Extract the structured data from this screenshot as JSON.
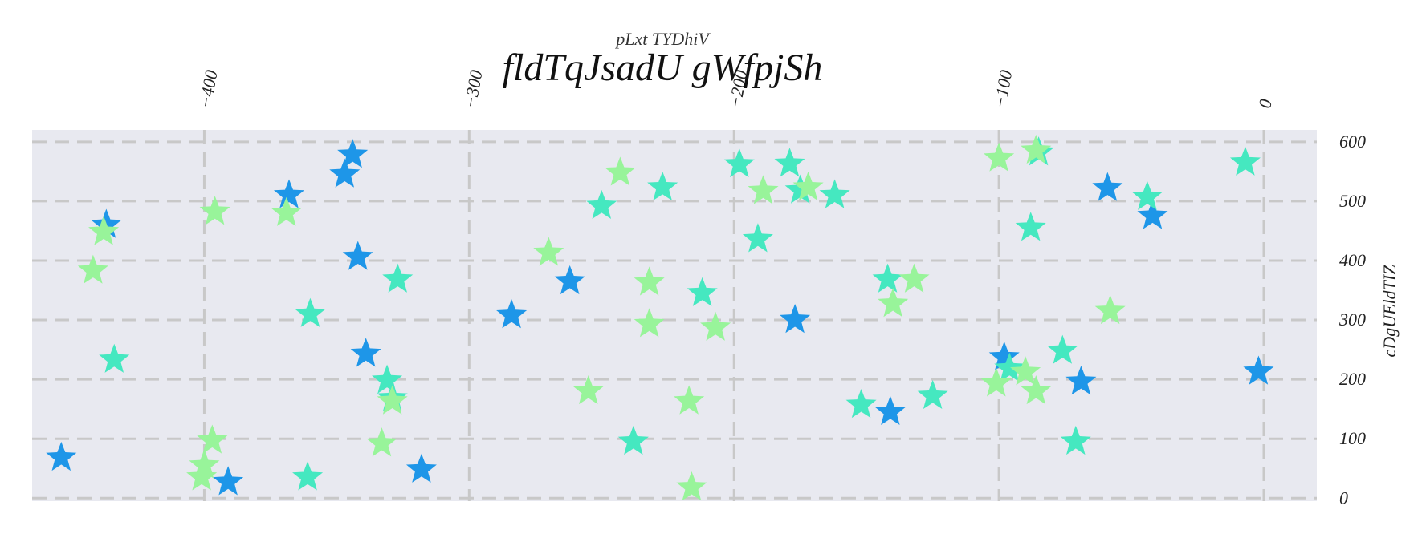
{
  "chart_data": {
    "type": "scatter",
    "title": "fldTqJsadU gWfpjSh",
    "subtitle": "pLxt TYDhiV",
    "xlabel": "pLxt TYDhiV",
    "ylabel": "cDgUEldTIZ",
    "xlim": [
      -465,
      20
    ],
    "ylim": [
      -5,
      620
    ],
    "x_ticks": [
      -400,
      -300,
      -200,
      -100,
      0
    ],
    "x_tick_labels": [
      "−400",
      "−300",
      "−200",
      "−100",
      "0"
    ],
    "y_ticks": [
      0,
      100,
      200,
      300,
      400,
      500,
      600
    ],
    "y_tick_labels": [
      "0",
      "100",
      "200",
      "300",
      "400",
      "500",
      "600"
    ],
    "x_axis_position": "top",
    "y_axis_position": "right",
    "grid": true,
    "marker": "star",
    "colors": {
      "blue": "#1e96e8",
      "teal": "#45e8c0",
      "green": "#98f49a",
      "background": "#e8e9f0",
      "grid": "#c8c8c8"
    },
    "series": [
      {
        "color": "#1e96e8",
        "points": [
          [
            -344,
            578
          ],
          [
            -347,
            545
          ],
          [
            -368,
            510
          ],
          [
            -437,
            460
          ],
          [
            -342,
            406
          ],
          [
            -262,
            365
          ],
          [
            -284,
            308
          ],
          [
            -339,
            243
          ],
          [
            -318,
            48
          ],
          [
            -391,
            27
          ],
          [
            -454,
            68
          ],
          [
            -177,
            300
          ],
          [
            -42,
            475
          ],
          [
            -59,
            522
          ],
          [
            -98,
            237
          ],
          [
            -69,
            196
          ],
          [
            -2,
            213
          ],
          [
            -141,
            145
          ]
        ]
      },
      {
        "color": "#45e8c0",
        "points": [
          [
            -327,
            368
          ],
          [
            -360,
            310
          ],
          [
            -331,
            198
          ],
          [
            -329,
            168
          ],
          [
            -434,
            233
          ],
          [
            -361,
            35
          ],
          [
            -250,
            492
          ],
          [
            -198,
            562
          ],
          [
            -179,
            563
          ],
          [
            -175,
            518
          ],
          [
            -162,
            510
          ],
          [
            -191,
            436
          ],
          [
            -212,
            345
          ],
          [
            -142,
            368
          ],
          [
            -227,
            523
          ],
          [
            -238,
            95
          ],
          [
            -85,
            582
          ],
          [
            -88,
            455
          ],
          [
            -76,
            248
          ],
          [
            -96,
            218
          ],
          [
            -44,
            507
          ],
          [
            -7,
            565
          ],
          [
            -152,
            157
          ],
          [
            -125,
            172
          ],
          [
            -71,
            95
          ]
        ]
      },
      {
        "color": "#98f49a",
        "points": [
          [
            -438,
            448
          ],
          [
            -442,
            383
          ],
          [
            -396,
            482
          ],
          [
            -369,
            480
          ],
          [
            -401,
            35
          ],
          [
            -400,
            55
          ],
          [
            -397,
            97
          ],
          [
            -329,
            163
          ],
          [
            -333,
            92
          ],
          [
            -270,
            413
          ],
          [
            -243,
            548
          ],
          [
            -255,
            180
          ],
          [
            -232,
            363
          ],
          [
            -232,
            293
          ],
          [
            -217,
            163
          ],
          [
            -207,
            287
          ],
          [
            -189,
            517
          ],
          [
            -172,
            523
          ],
          [
            -140,
            327
          ],
          [
            -132,
            368
          ],
          [
            -100,
            572
          ],
          [
            -86,
            585
          ],
          [
            -58,
            315
          ],
          [
            -101,
            193
          ],
          [
            -86,
            180
          ],
          [
            -90,
            212
          ],
          [
            -216,
            18
          ]
        ]
      }
    ]
  }
}
